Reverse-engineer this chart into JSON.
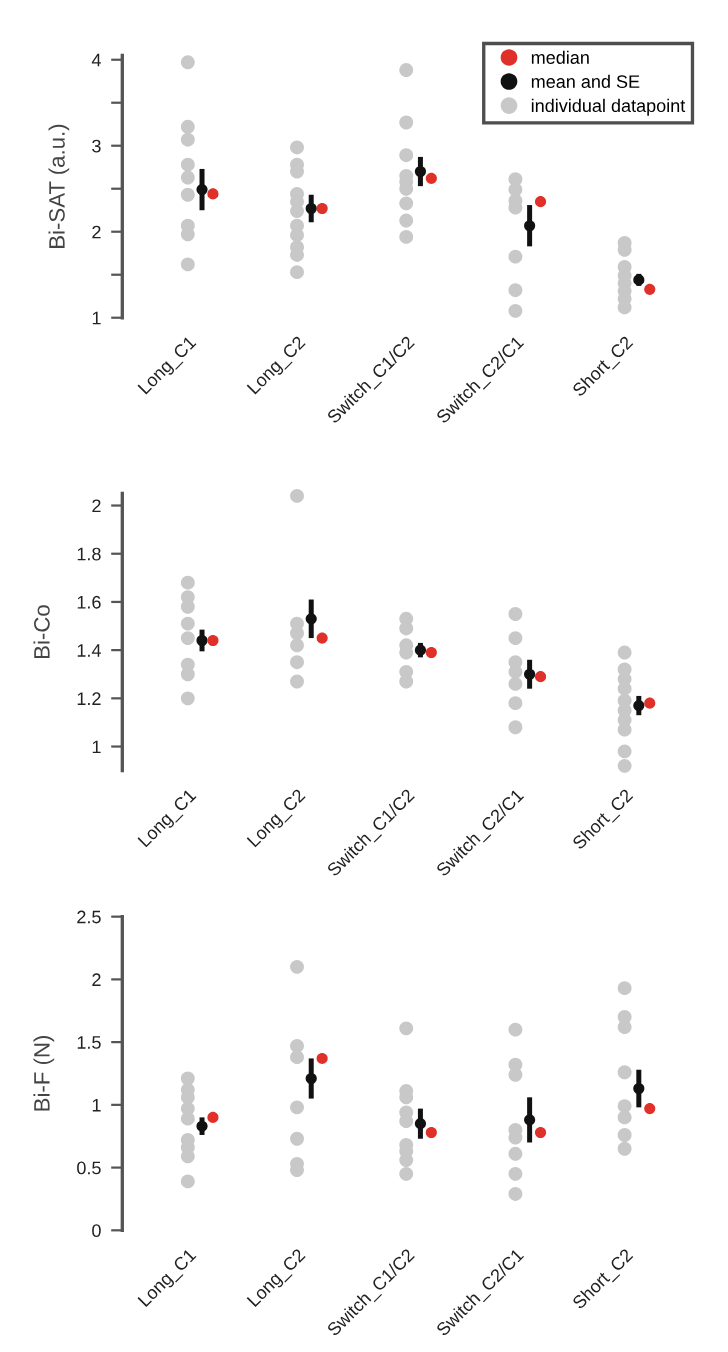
{
  "chart_data": [
    {
      "type": "scatter",
      "ylabel": "Bi-SAT (a.u.)",
      "categories": [
        "Long_C1",
        "Long_C2",
        "Switch_C1/C2",
        "Switch_C2/C1",
        "Short_C2"
      ],
      "ylim": [
        1,
        4.05
      ],
      "yticks": [
        1,
        {
          "value": 1.5,
          "label": null
        },
        2,
        {
          "value": 2.5,
          "label": null
        },
        3,
        {
          "value": 3.5,
          "label": null
        },
        4
      ],
      "legend": "top right",
      "grid": false,
      "marker": "circle",
      "series": [
        {
          "name": "median",
          "color": "#e0302a",
          "x": [
            "Long_C1",
            "Long_C2",
            "Switch_C1/C2",
            "Switch_C2/C1",
            "Short_C2"
          ],
          "values": [
            2.44,
            2.27,
            2.62,
            2.35,
            1.33
          ]
        },
        {
          "name": "mean and SE",
          "color": "#111111",
          "x": [
            "Long_C1",
            "Long_C2",
            "Switch_C1/C2",
            "Switch_C2/C1",
            "Short_C2"
          ],
          "values": [
            2.49,
            2.27,
            2.7,
            2.07,
            1.44
          ],
          "errors": [
            0.24,
            0.16,
            0.17,
            0.24,
            0.07
          ]
        },
        {
          "name": "individual datapoint",
          "color": "#c8c8c8",
          "x": [
            "Long_C1",
            "Long_C1",
            "Long_C1",
            "Long_C1",
            "Long_C1",
            "Long_C1",
            "Long_C1",
            "Long_C1",
            "Long_C1",
            "Long_C2",
            "Long_C2",
            "Long_C2",
            "Long_C2",
            "Long_C2",
            "Long_C2",
            "Long_C2",
            "Long_C2",
            "Long_C2",
            "Long_C2",
            "Long_C2",
            "Switch_C1/C2",
            "Switch_C1/C2",
            "Switch_C1/C2",
            "Switch_C1/C2",
            "Switch_C1/C2",
            "Switch_C1/C2",
            "Switch_C1/C2",
            "Switch_C1/C2",
            "Switch_C1/C2",
            "Switch_C2/C1",
            "Switch_C2/C1",
            "Switch_C2/C1",
            "Switch_C2/C1",
            "Switch_C2/C1",
            "Switch_C2/C1",
            "Switch_C2/C1",
            "Short_C2",
            "Short_C2",
            "Short_C2",
            "Short_C2",
            "Short_C2",
            "Short_C2",
            "Short_C2",
            "Short_C2"
          ],
          "values": [
            3.97,
            3.22,
            3.07,
            2.78,
            2.63,
            2.43,
            2.07,
            1.97,
            1.62,
            2.98,
            2.78,
            2.7,
            2.44,
            2.35,
            2.24,
            2.07,
            1.96,
            1.82,
            1.73,
            1.53,
            3.88,
            3.27,
            2.89,
            2.65,
            2.58,
            2.5,
            2.33,
            2.13,
            1.94,
            2.61,
            2.49,
            2.36,
            2.28,
            1.71,
            1.32,
            1.08,
            1.87,
            1.79,
            1.59,
            1.49,
            1.4,
            1.31,
            1.22,
            1.12
          ]
        }
      ]
    },
    {
      "type": "scatter",
      "ylabel": "Bi-Co",
      "categories": [
        "Long_C1",
        "Long_C2",
        "Switch_C1/C2",
        "Switch_C2/C1",
        "Short_C2"
      ],
      "ylim": [
        0.9,
        2.05
      ],
      "yticks": [
        1,
        1.2,
        1.4,
        1.6,
        1.8,
        2
      ],
      "grid": false,
      "marker": "circle",
      "series": [
        {
          "color": "#e0302a",
          "x": [
            "Long_C1",
            "Long_C2",
            "Switch_C1/C2",
            "Switch_C2/C1",
            "Short_C2"
          ],
          "values": [
            1.44,
            1.45,
            1.39,
            1.29,
            1.18
          ]
        },
        {
          "color": "#111111",
          "x": [
            "Long_C1",
            "Long_C2",
            "Switch_C1/C2",
            "Switch_C2/C1",
            "Short_C2"
          ],
          "values": [
            1.44,
            1.53,
            1.4,
            1.3,
            1.17
          ],
          "errors": [
            0.045,
            0.08,
            0.03,
            0.06,
            0.04
          ]
        },
        {
          "color": "#c8c8c8",
          "x": [
            "Long_C1",
            "Long_C1",
            "Long_C1",
            "Long_C1",
            "Long_C1",
            "Long_C1",
            "Long_C1",
            "Long_C1",
            "Long_C2",
            "Long_C2",
            "Long_C2",
            "Long_C2",
            "Long_C2",
            "Long_C2",
            "Switch_C1/C2",
            "Switch_C1/C2",
            "Switch_C1/C2",
            "Switch_C1/C2",
            "Switch_C1/C2",
            "Switch_C1/C2",
            "Switch_C2/C1",
            "Switch_C2/C1",
            "Switch_C2/C1",
            "Switch_C2/C1",
            "Switch_C2/C1",
            "Switch_C2/C1",
            "Switch_C2/C1",
            "Short_C2",
            "Short_C2",
            "Short_C2",
            "Short_C2",
            "Short_C2",
            "Short_C2",
            "Short_C2",
            "Short_C2",
            "Short_C2",
            "Short_C2"
          ],
          "values": [
            1.68,
            1.62,
            1.58,
            1.51,
            1.45,
            1.34,
            1.3,
            1.2,
            2.04,
            1.51,
            1.47,
            1.42,
            1.35,
            1.27,
            1.53,
            1.49,
            1.42,
            1.39,
            1.31,
            1.27,
            1.55,
            1.45,
            1.35,
            1.31,
            1.26,
            1.18,
            1.08,
            1.39,
            1.32,
            1.28,
            1.24,
            1.19,
            1.15,
            1.11,
            1.07,
            0.98,
            0.92
          ]
        }
      ]
    },
    {
      "type": "scatter",
      "ylabel": "Bi-F (N)",
      "categories": [
        "Long_C1",
        "Long_C2",
        "Switch_C1/C2",
        "Switch_C2/C1",
        "Short_C2"
      ],
      "ylim": [
        0,
        2.5
      ],
      "yticks": [
        0,
        0.5,
        1,
        1.5,
        2,
        2.5
      ],
      "grid": false,
      "marker": "circle",
      "series": [
        {
          "color": "#e0302a",
          "x": [
            "Long_C1",
            "Long_C2",
            "Switch_C1/C2",
            "Switch_C2/C1",
            "Short_C2"
          ],
          "values": [
            0.9,
            1.37,
            0.78,
            0.78,
            0.97
          ]
        },
        {
          "color": "#111111",
          "x": [
            "Long_C1",
            "Long_C2",
            "Switch_C1/C2",
            "Switch_C2/C1",
            "Short_C2"
          ],
          "values": [
            0.83,
            1.21,
            0.85,
            0.88,
            1.13
          ],
          "errors": [
            0.07,
            0.16,
            0.12,
            0.18,
            0.15
          ]
        },
        {
          "color": "#c8c8c8",
          "x": [
            "Long_C1",
            "Long_C1",
            "Long_C1",
            "Long_C1",
            "Long_C1",
            "Long_C1",
            "Long_C1",
            "Long_C1",
            "Long_C1",
            "Long_C2",
            "Long_C2",
            "Long_C2",
            "Long_C2",
            "Long_C2",
            "Long_C2",
            "Long_C2",
            "Long_C2",
            "Switch_C1/C2",
            "Switch_C1/C2",
            "Switch_C1/C2",
            "Switch_C1/C2",
            "Switch_C1/C2",
            "Switch_C1/C2",
            "Switch_C1/C2",
            "Switch_C1/C2",
            "Switch_C1/C2",
            "Switch_C2/C1",
            "Switch_C2/C1",
            "Switch_C2/C1",
            "Switch_C2/C1",
            "Switch_C2/C1",
            "Switch_C2/C1",
            "Switch_C2/C1",
            "Switch_C2/C1",
            "Short_C2",
            "Short_C2",
            "Short_C2",
            "Short_C2",
            "Short_C2",
            "Short_C2",
            "Short_C2",
            "Short_C2"
          ],
          "values": [
            1.21,
            1.12,
            1.06,
            0.97,
            0.89,
            0.72,
            0.66,
            0.59,
            0.39,
            2.1,
            1.47,
            null,
            1.38,
            0.98,
            0.73,
            0.53,
            0.48,
            1.61,
            1.11,
            1.06,
            0.94,
            0.87,
            0.68,
            0.63,
            0.56,
            0.45,
            1.6,
            1.32,
            1.24,
            0.8,
            0.74,
            0.61,
            0.45,
            0.29,
            1.93,
            1.7,
            1.62,
            1.26,
            0.99,
            0.9,
            0.76,
            0.65
          ]
        }
      ]
    }
  ]
}
